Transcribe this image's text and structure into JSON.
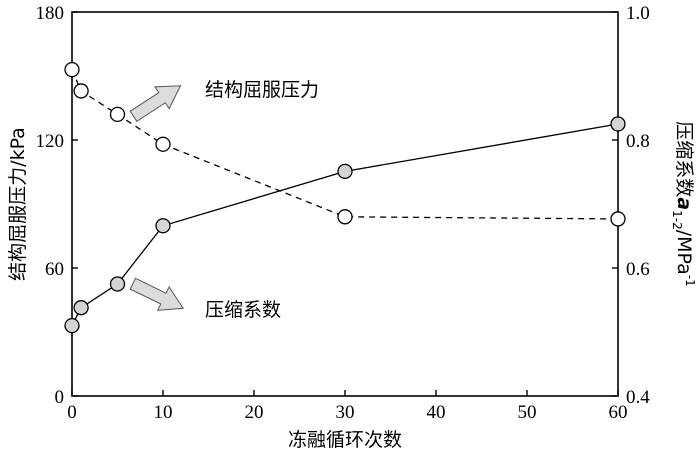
{
  "chart_data": {
    "type": "line",
    "xlabel": "冻融循环次数",
    "ylabel_left": "结构屈服压力/kPa",
    "ylabel_right_prefix": "压缩系数",
    "ylabel_right_symbol": "a",
    "ylabel_right_subscript": "1-2",
    "ylabel_right_unit": "/MPa",
    "ylabel_right_sup": "-1",
    "xlim": [
      0,
      60
    ],
    "ylim_left": [
      0,
      180
    ],
    "ylim_right": [
      0.4,
      1.0
    ],
    "x_ticks": [
      0,
      10,
      20,
      30,
      40,
      50,
      60
    ],
    "y_left_ticks": [
      0,
      60,
      120,
      180
    ],
    "y_right_ticks": [
      "0.4",
      "0.6",
      "0.8",
      "1.0"
    ],
    "grid": false,
    "series": [
      {
        "name": "结构屈服压力",
        "axis": "left",
        "line_style": "dashed",
        "marker_fill": "#ffffff",
        "x": [
          0,
          1,
          5,
          10,
          30,
          60
        ],
        "y": [
          153,
          143,
          132,
          118,
          84,
          83
        ]
      },
      {
        "name": "压缩系数",
        "axis": "right",
        "line_style": "solid",
        "marker_fill": "#d4d4d4",
        "x": [
          0,
          1,
          5,
          10,
          30,
          60
        ],
        "y": [
          0.51,
          0.538,
          0.575,
          0.666,
          0.751,
          0.825
        ]
      }
    ],
    "annotations": [
      {
        "text": "结构屈服压力",
        "arrow_color": "#dcdcdc"
      },
      {
        "text": "压缩系数",
        "arrow_color": "#dcdcdc"
      }
    ]
  }
}
